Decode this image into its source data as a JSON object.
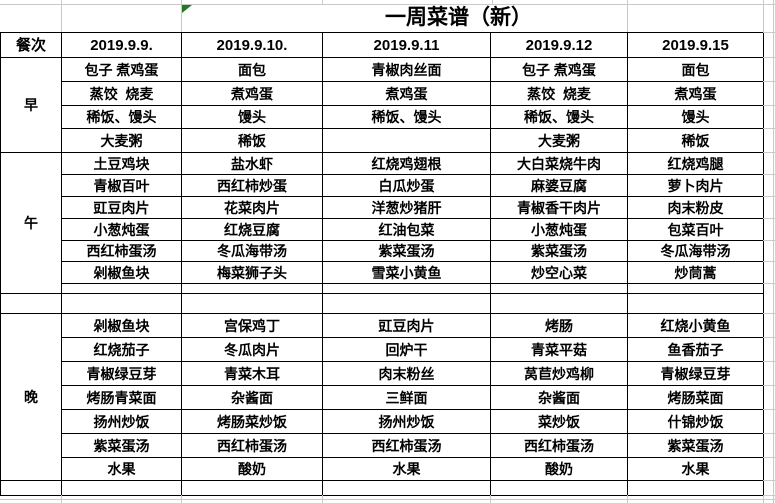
{
  "title": "一周菜谱（新）",
  "columns": [
    "餐次",
    "2019.9.9.",
    "2019.9.10.",
    "2019.9.11",
    "2019.9.12",
    "2019.9.15"
  ],
  "sections": [
    {
      "label": "早",
      "rows": [
        [
          "包子 煮鸡蛋",
          "面包",
          "青椒肉丝面",
          "包子 煮鸡蛋",
          "面包"
        ],
        [
          "蒸饺  烧麦",
          "煮鸡蛋",
          "煮鸡蛋",
          "蒸饺  烧麦",
          "煮鸡蛋"
        ],
        [
          "稀饭、馒头",
          "馒头",
          "稀饭、馒头",
          "稀饭、馒头",
          "馒头"
        ],
        [
          "大麦粥",
          "稀饭",
          "",
          "大麦粥",
          "稀饭"
        ]
      ]
    },
    {
      "label": "午",
      "rows": [
        [
          "土豆鸡块",
          "盐水虾",
          "红烧鸡翅根",
          "大白菜烧牛肉",
          "红烧鸡腿"
        ],
        [
          "青椒百叶",
          "西红柿炒蛋",
          "白瓜炒蛋",
          "麻婆豆腐",
          "萝卜肉片"
        ],
        [
          "豇豆肉片",
          "花菜肉片",
          "洋葱炒猪肝",
          "青椒香干肉片",
          "肉末粉皮"
        ],
        [
          "小葱炖蛋",
          "红烧豆腐",
          "红油包菜",
          "小葱炖蛋",
          "包菜百叶"
        ],
        [
          "西红柿蛋汤",
          "冬瓜海带汤",
          "紫菜蛋汤",
          "紫菜蛋汤",
          "冬瓜海带汤"
        ],
        [
          "剁椒鱼块",
          "梅菜狮子头",
          "雪菜小黄鱼",
          "炒空心菜",
          "炒茼蒿"
        ]
      ]
    },
    {
      "label": "晚",
      "rows": [
        [
          "剁椒鱼块",
          "宫保鸡丁",
          "豇豆肉片",
          "烤肠",
          "红烧小黄鱼"
        ],
        [
          "红烧茄子",
          "冬瓜肉片",
          "回炉干",
          "青菜平菇",
          "鱼香茄子"
        ],
        [
          "青椒绿豆芽",
          "青菜木耳",
          "肉末粉丝",
          "莴苣炒鸡柳",
          "青椒绿豆芽"
        ],
        [
          "烤肠青菜面",
          "杂酱面",
          "三鲜面",
          "杂酱面",
          "烤肠菜面"
        ],
        [
          "扬州炒饭",
          "烤肠菜炒饭",
          "扬州炒饭",
          "菜炒饭",
          "什锦炒饭"
        ],
        [
          "紫菜蛋汤",
          "西红柿蛋汤",
          "西红柿蛋汤",
          "西红柿蛋汤",
          "紫菜蛋汤"
        ],
        [
          "水果",
          "酸奶",
          "水果",
          "酸奶",
          "水果"
        ]
      ]
    }
  ],
  "indicator": {
    "type": "green-corner-triangle",
    "color": "#217a21"
  },
  "colors": {
    "cell_border": "#000000",
    "gridline": "#c9c9c9",
    "text": "#000000",
    "background": "#ffffff"
  }
}
